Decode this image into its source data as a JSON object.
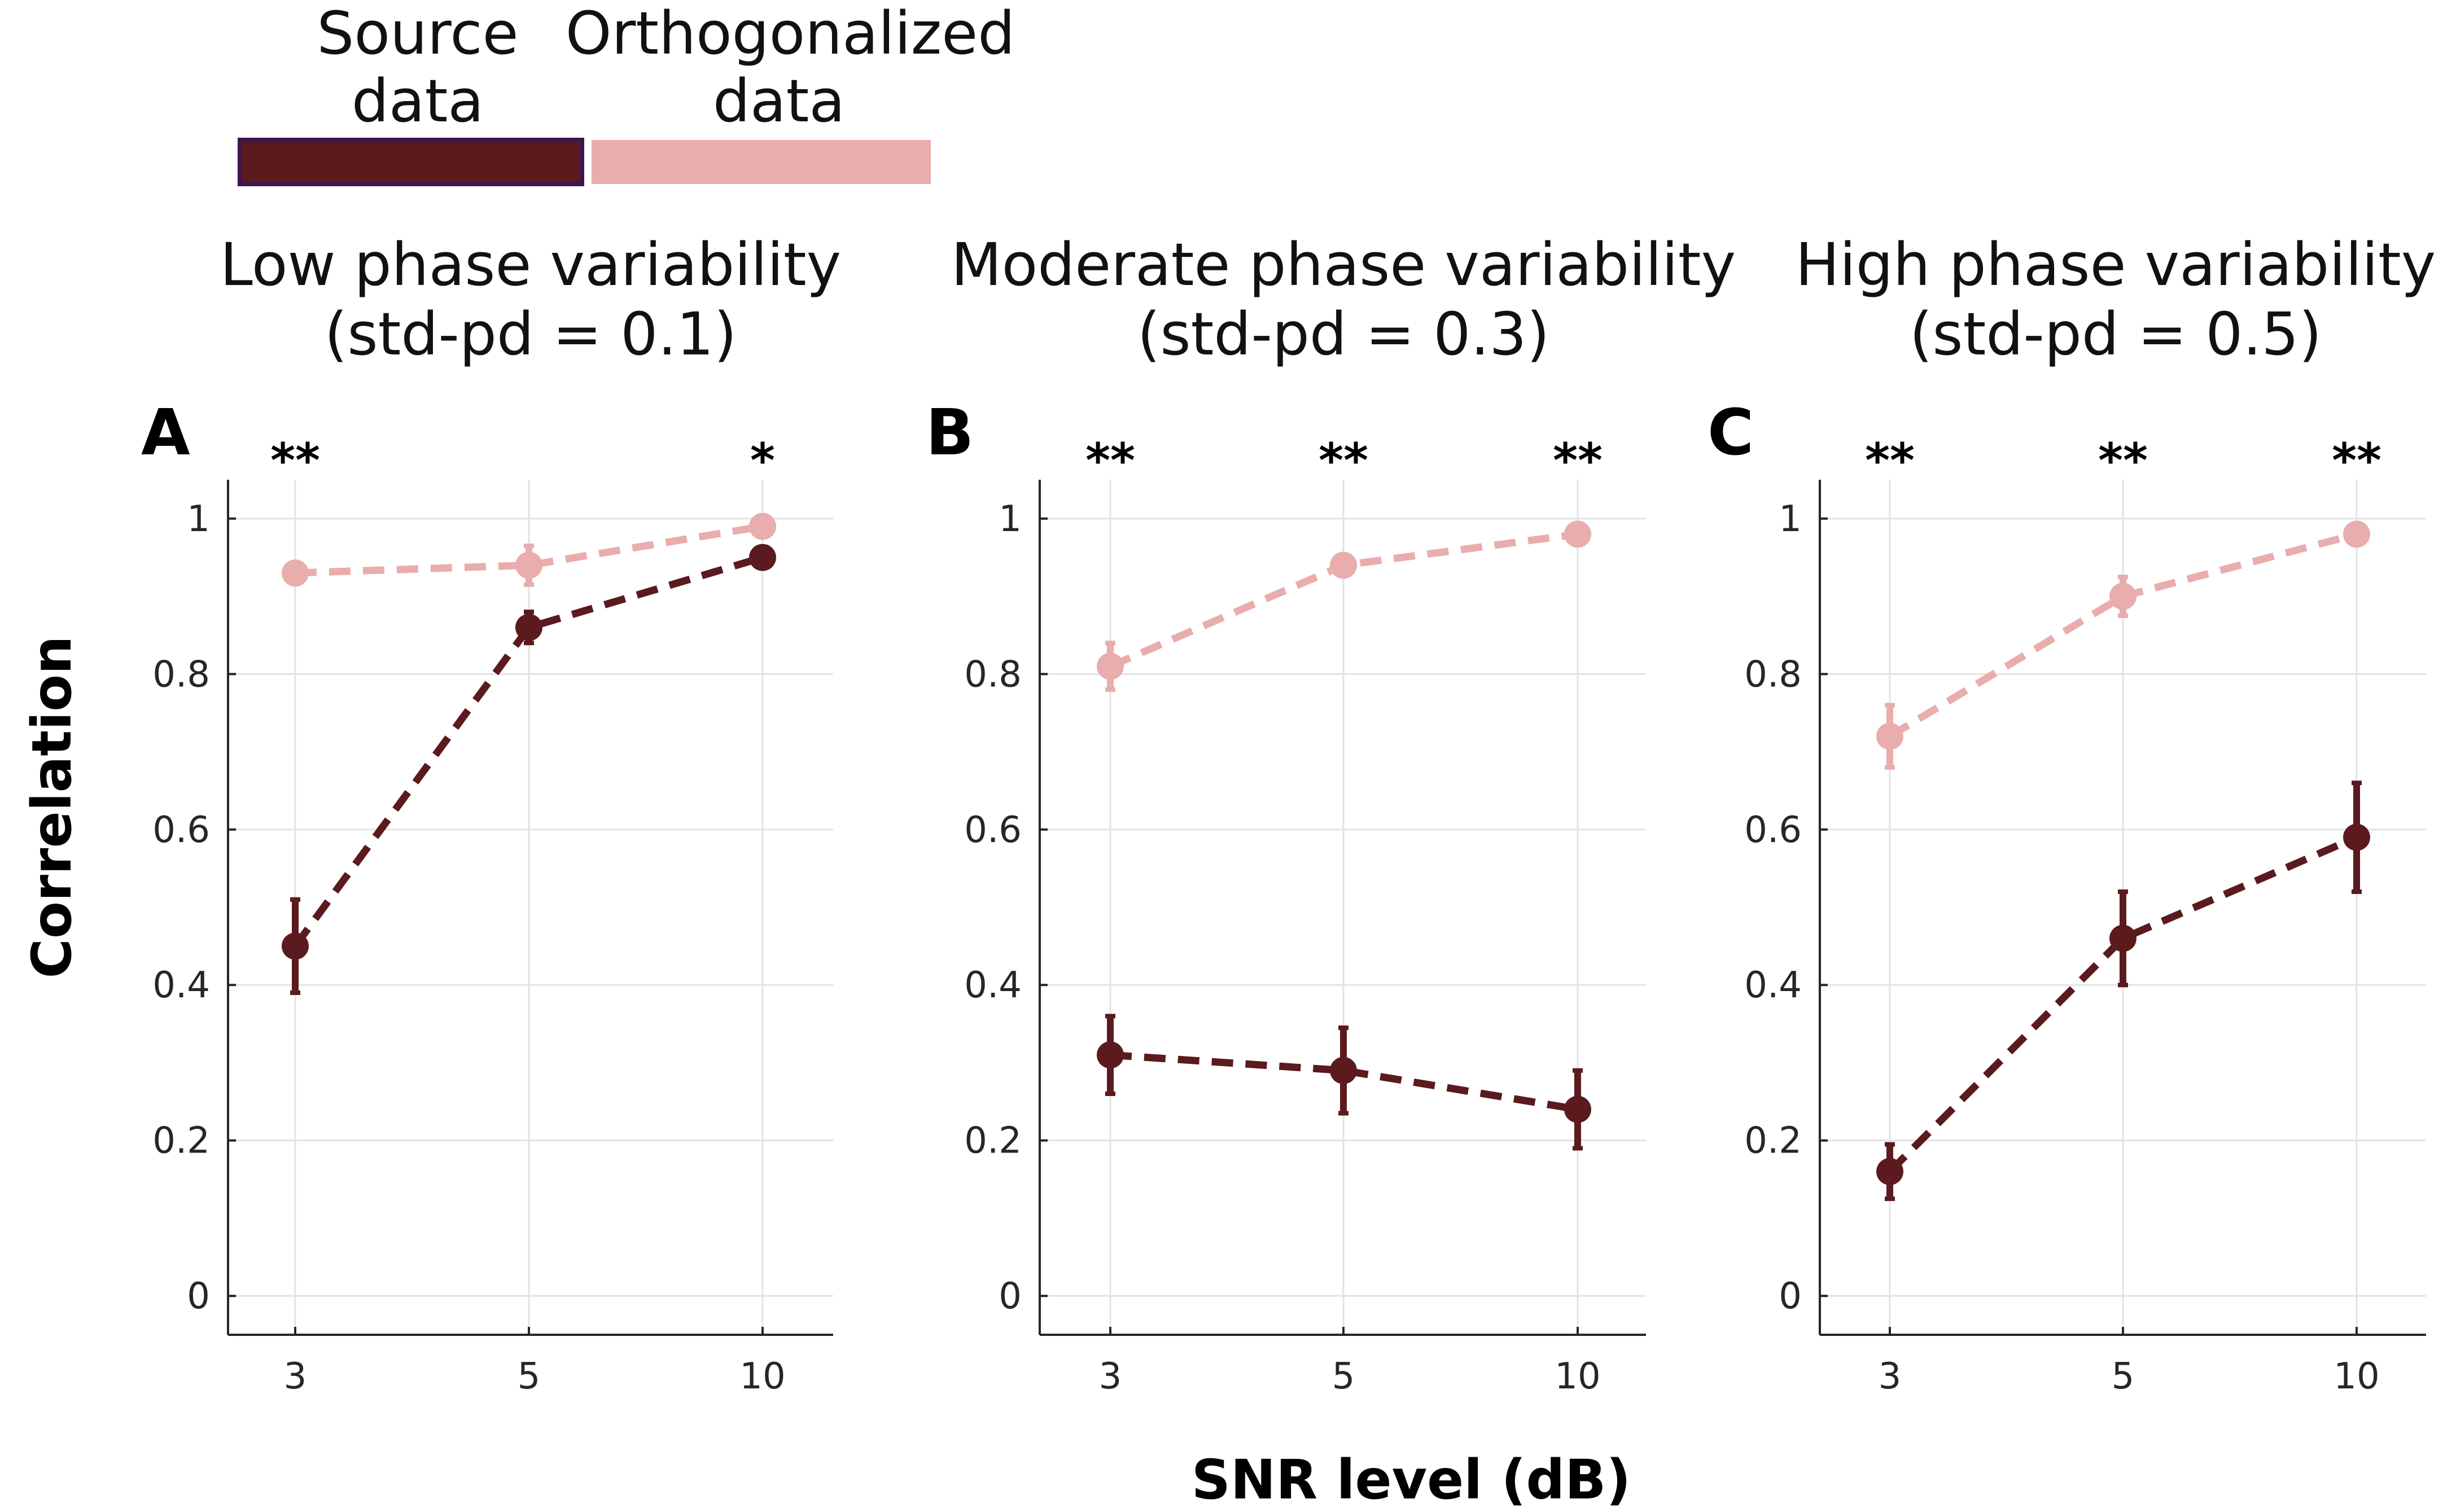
{
  "legend": {
    "items": [
      {
        "lines": [
          "Source",
          "data"
        ],
        "color": "#5a1a1e",
        "border": "#3d154f"
      },
      {
        "lines": [
          "Orthogonalized",
          "data"
        ],
        "color": "#e8adac",
        "border": "#e8adac"
      }
    ]
  },
  "axes": {
    "ylabel": "Correlation",
    "xlabel": "SNR level (dB)"
  },
  "colors": {
    "source": "#5a1a1e",
    "orthogonalized": "#e8adac",
    "grid": "#e3e3e3",
    "axis": "#262626"
  },
  "chart_data": [
    {
      "type": "line",
      "panel": "A",
      "title": [
        "Low phase variability",
        "(std-pd = 0.1)"
      ],
      "categories": [
        "3",
        "5",
        "10"
      ],
      "yticks": [
        "0",
        "0.2",
        "0.4",
        "0.6",
        "0.8",
        "1"
      ],
      "ylim": [
        -0.05,
        1.05
      ],
      "significance": [
        "**",
        "",
        "*"
      ],
      "series": [
        {
          "name": "Orthogonalized data",
          "values": [
            0.93,
            0.94,
            0.99
          ],
          "err": [
            0.01,
            0.025,
            0.01
          ]
        },
        {
          "name": "Source data",
          "values": [
            0.45,
            0.86,
            0.95
          ],
          "err": [
            0.06,
            0.02,
            0.01
          ]
        }
      ]
    },
    {
      "type": "line",
      "panel": "B",
      "title": [
        "Moderate phase variability",
        "(std-pd = 0.3)"
      ],
      "categories": [
        "3",
        "5",
        "10"
      ],
      "yticks": [
        "0",
        "0.2",
        "0.4",
        "0.6",
        "0.8",
        "1"
      ],
      "ylim": [
        -0.05,
        1.05
      ],
      "significance": [
        "**",
        "**",
        "**"
      ],
      "series": [
        {
          "name": "Orthogonalized data",
          "values": [
            0.81,
            0.94,
            0.98
          ],
          "err": [
            0.03,
            0.01,
            0.01
          ]
        },
        {
          "name": "Source data",
          "values": [
            0.31,
            0.29,
            0.24
          ],
          "err": [
            0.05,
            0.055,
            0.05
          ]
        }
      ]
    },
    {
      "type": "line",
      "panel": "C",
      "title": [
        "High phase variability",
        "(std-pd = 0.5)"
      ],
      "categories": [
        "3",
        "5",
        "10"
      ],
      "yticks": [
        "0",
        "0.2",
        "0.4",
        "0.6",
        "0.8",
        "1"
      ],
      "ylim": [
        -0.05,
        1.05
      ],
      "significance": [
        "**",
        "**",
        "**"
      ],
      "series": [
        {
          "name": "Orthogonalized data",
          "values": [
            0.72,
            0.9,
            0.98
          ],
          "err": [
            0.04,
            0.025,
            0.01
          ]
        },
        {
          "name": "Source data",
          "values": [
            0.16,
            0.46,
            0.59
          ],
          "err": [
            0.035,
            0.06,
            0.07
          ]
        }
      ]
    }
  ]
}
